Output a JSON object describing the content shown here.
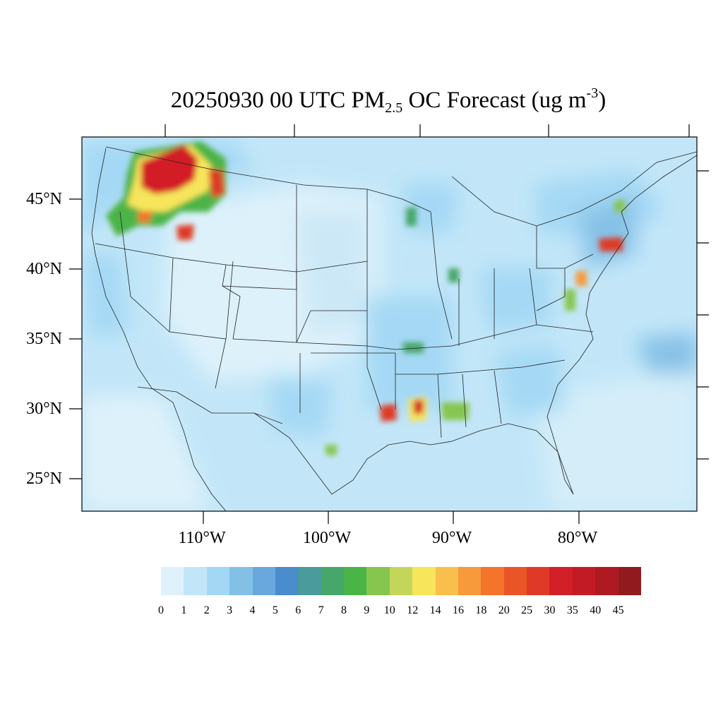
{
  "title": {
    "prefix": "20250930 00 UTC PM",
    "subscript": "2.5",
    "middle": " OC Forecast (ug m",
    "superscript": "-3",
    "suffix": ")"
  },
  "lat_labels": [
    "45°N",
    "40°N",
    "35°N",
    "30°N",
    "25°N"
  ],
  "lon_labels": [
    "110°W",
    "100°W",
    "90°W",
    "80°W"
  ],
  "colorbar": {
    "labels": [
      "0",
      "1",
      "2",
      "3",
      "4",
      "5",
      "6",
      "7",
      "8",
      "9",
      "10",
      "12",
      "14",
      "16",
      "18",
      "20",
      "25",
      "30",
      "35",
      "40",
      "45"
    ],
    "colors": [
      "#dff2fb",
      "#c2e6f8",
      "#a3d8f4",
      "#84c0e6",
      "#68a8dc",
      "#4a8ccc",
      "#4a9b9c",
      "#47a66a",
      "#4bb447",
      "#86c64f",
      "#c4d65a",
      "#f7e55b",
      "#f8bf4c",
      "#f79a3c",
      "#f4742c",
      "#ea5528",
      "#de3a27",
      "#d21f28",
      "#c31b26",
      "#ae1a22",
      "#901a1d"
    ]
  }
}
